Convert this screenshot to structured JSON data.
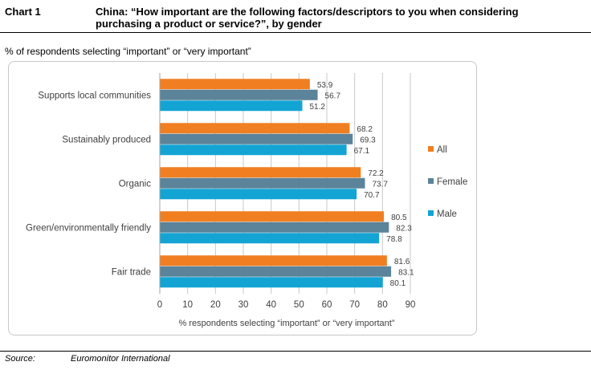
{
  "header": {
    "chart_label": "Chart 1",
    "title": "China: “How important are the following factors/descriptors to you when considering purchasing a product or service?”, by gender"
  },
  "subtitle": "% of respondents selecting “important” or “very important”",
  "footer": {
    "source_label": "Source:",
    "source_value": "Euromonitor International"
  },
  "colors": {
    "All": "#f07f22",
    "Female": "#5b8399",
    "Male": "#13a4d4",
    "grid": "#c8c8c8"
  },
  "chart_data": {
    "type": "bar",
    "orientation": "horizontal",
    "categories": [
      "Supports local communities",
      "Sustainably produced",
      "Organic",
      "Green/environmentally friendly",
      "Fair trade"
    ],
    "series": [
      {
        "name": "All",
        "values": [
          53.9,
          68.2,
          72.2,
          80.5,
          81.6
        ]
      },
      {
        "name": "Female",
        "values": [
          56.7,
          69.3,
          73.7,
          82.3,
          83.1
        ]
      },
      {
        "name": "Male",
        "values": [
          51.2,
          67.1,
          70.7,
          78.8,
          80.1
        ]
      }
    ],
    "xlabel": "% respondents selecting “important” or “very important”",
    "ylabel": "",
    "xlim": [
      0,
      90
    ],
    "xticks": [
      0,
      10,
      20,
      30,
      40,
      50,
      60,
      70,
      80,
      90
    ],
    "grid": true,
    "legend_position": "right"
  }
}
